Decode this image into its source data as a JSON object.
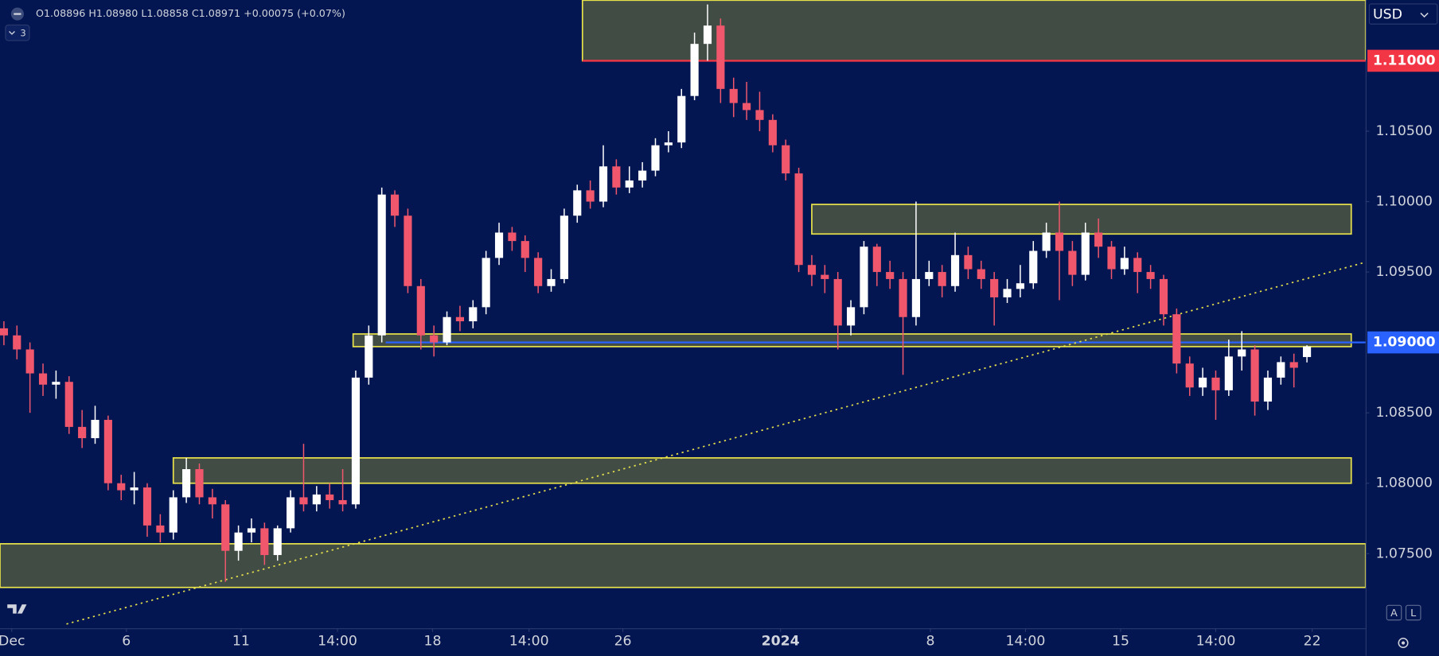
{
  "ui": {
    "indicator_count": "3",
    "currency": "USD",
    "button_auto": "A",
    "button_log": "L"
  },
  "chart_data": {
    "type": "candlestick",
    "legend_text": "O1.08896 H1.08980 L1.08858 C1.08971 +0.00075 (+0.07%)",
    "up_color": "#ffffff",
    "down_color": "#f0576c",
    "ylim": [
      1.0697,
      1.1143
    ],
    "xlim": [
      -0.3,
      104.5
    ],
    "yticks": [
      {
        "value": 1.075,
        "label": "1.07500"
      },
      {
        "value": 1.08,
        "label": "1.08000"
      },
      {
        "value": 1.085,
        "label": "1.08500"
      },
      {
        "value": 1.095,
        "label": "1.09500"
      },
      {
        "value": 1.1,
        "label": "1.10000"
      },
      {
        "value": 1.105,
        "label": "1.10500"
      }
    ],
    "xticks": [
      {
        "value": 0.6,
        "label": "Dec"
      },
      {
        "value": 9.4,
        "label": "6"
      },
      {
        "value": 18.2,
        "label": "11"
      },
      {
        "value": 25.6,
        "label": "14:00"
      },
      {
        "value": 32.9,
        "label": "18"
      },
      {
        "value": 40.3,
        "label": "14:00"
      },
      {
        "value": 47.5,
        "label": "26"
      },
      {
        "value": 59.6,
        "label": "2024"
      },
      {
        "value": 71.1,
        "label": "8"
      },
      {
        "value": 78.4,
        "label": "14:00"
      },
      {
        "value": 85.7,
        "label": "15"
      },
      {
        "value": 93.0,
        "label": "14:00"
      },
      {
        "value": 100.4,
        "label": "22"
      }
    ],
    "grid": false,
    "zones": [
      {
        "from": 1.11,
        "to": 1.1143,
        "start": 44.4,
        "end": 104.5,
        "color": "#444f45",
        "border": "#e6e04a"
      },
      {
        "from": 1.0977,
        "to": 1.0998,
        "start": 62.0,
        "end": 103.4,
        "color": "#444f45",
        "border": "#e6e04a"
      },
      {
        "from": 1.0897,
        "to": 1.0906,
        "start": 26.8,
        "end": 103.4,
        "color": "#444f45",
        "border": "#e6e04a"
      },
      {
        "from": 1.08,
        "to": 1.0818,
        "start": 13.0,
        "end": 103.4,
        "color": "#444f45",
        "border": "#e6e04a"
      },
      {
        "from": 1.0726,
        "to": 1.0757,
        "start": -0.3,
        "end": 104.5,
        "color": "#444f45",
        "border": "#e6e04a"
      }
    ],
    "trendline": {
      "points": [
        [
          4.8,
          1.07
        ],
        [
          104.5,
          1.0957
        ]
      ],
      "color": "#e6e04a"
    },
    "price_lines": [
      {
        "value": 1.11,
        "label": "1.11000",
        "start": 44.4,
        "color": "#f23645"
      },
      {
        "value": 1.09,
        "label": "1.09000",
        "start": 29.3,
        "color": "#2962ff"
      }
    ],
    "candles": [
      [
        1.091,
        1.0915,
        1.0898,
        1.0905
      ],
      [
        1.0905,
        1.0912,
        1.0888,
        1.0895
      ],
      [
        1.0895,
        1.09,
        1.085,
        1.0878
      ],
      [
        1.0878,
        1.0885,
        1.0862,
        1.087
      ],
      [
        1.087,
        1.088,
        1.086,
        1.0872
      ],
      [
        1.0872,
        1.0876,
        1.0835,
        1.084
      ],
      [
        1.084,
        1.0852,
        1.0825,
        1.0832
      ],
      [
        1.0832,
        1.0855,
        1.0828,
        1.0845
      ],
      [
        1.0845,
        1.0848,
        1.0795,
        1.08
      ],
      [
        1.08,
        1.0806,
        1.0788,
        1.0795
      ],
      [
        1.0795,
        1.0808,
        1.0785,
        1.0797
      ],
      [
        1.0797,
        1.08,
        1.0762,
        1.077
      ],
      [
        1.077,
        1.0778,
        1.0758,
        1.0765
      ],
      [
        1.0765,
        1.0795,
        1.076,
        1.079
      ],
      [
        1.079,
        1.0818,
        1.0786,
        1.081
      ],
      [
        1.081,
        1.0814,
        1.0785,
        1.079
      ],
      [
        1.079,
        1.0796,
        1.0775,
        1.0785
      ],
      [
        1.0785,
        1.0788,
        1.073,
        1.0752
      ],
      [
        1.0752,
        1.077,
        1.0745,
        1.0765
      ],
      [
        1.0765,
        1.0775,
        1.0758,
        1.0768
      ],
      [
        1.0768,
        1.0772,
        1.0742,
        1.0749
      ],
      [
        1.0749,
        1.077,
        1.0745,
        1.0768
      ],
      [
        1.0768,
        1.0795,
        1.0765,
        1.079
      ],
      [
        1.079,
        1.0828,
        1.078,
        1.0785
      ],
      [
        1.0785,
        1.0798,
        1.078,
        1.0792
      ],
      [
        1.0792,
        1.08,
        1.0782,
        1.0788
      ],
      [
        1.0788,
        1.081,
        1.078,
        1.0785
      ],
      [
        1.0785,
        1.088,
        1.0782,
        1.0875
      ],
      [
        1.0875,
        1.0912,
        1.087,
        1.0905
      ],
      [
        1.0905,
        1.101,
        1.09,
        1.1005
      ],
      [
        1.1005,
        1.1008,
        1.0982,
        1.099
      ],
      [
        1.099,
        1.0995,
        1.0935,
        1.094
      ],
      [
        1.094,
        1.0945,
        1.0895,
        1.0905
      ],
      [
        1.0905,
        1.0912,
        1.089,
        1.09
      ],
      [
        1.09,
        1.0922,
        1.0898,
        1.0918
      ],
      [
        1.0918,
        1.0926,
        1.0908,
        1.0915
      ],
      [
        1.0915,
        1.093,
        1.091,
        1.0925
      ],
      [
        1.0925,
        1.0965,
        1.092,
        1.096
      ],
      [
        1.096,
        1.0985,
        1.0955,
        1.0978
      ],
      [
        1.0978,
        1.0982,
        1.0965,
        1.0972
      ],
      [
        1.0972,
        1.0976,
        1.095,
        1.096
      ],
      [
        1.096,
        1.0964,
        1.0935,
        1.094
      ],
      [
        1.094,
        1.0952,
        1.0936,
        1.0945
      ],
      [
        1.0945,
        1.0995,
        1.0942,
        1.099
      ],
      [
        1.099,
        1.1012,
        1.0985,
        1.1008
      ],
      [
        1.1008,
        1.1015,
        1.0995,
        1.1
      ],
      [
        1.1,
        1.104,
        1.0996,
        1.1025
      ],
      [
        1.1025,
        1.103,
        1.1005,
        1.101
      ],
      [
        1.101,
        1.1025,
        1.1006,
        1.1015
      ],
      [
        1.1015,
        1.1028,
        1.101,
        1.1022
      ],
      [
        1.1022,
        1.1045,
        1.1018,
        1.104
      ],
      [
        1.104,
        1.105,
        1.1035,
        1.1042
      ],
      [
        1.1042,
        1.108,
        1.1038,
        1.1075
      ],
      [
        1.1075,
        1.112,
        1.1072,
        1.1112
      ],
      [
        1.1112,
        1.114,
        1.11,
        1.1125
      ],
      [
        1.1125,
        1.113,
        1.107,
        1.108
      ],
      [
        1.108,
        1.1088,
        1.106,
        1.107
      ],
      [
        1.107,
        1.1085,
        1.1058,
        1.1065
      ],
      [
        1.1065,
        1.1078,
        1.105,
        1.1058
      ],
      [
        1.1058,
        1.1062,
        1.1035,
        1.104
      ],
      [
        1.104,
        1.1044,
        1.1015,
        1.102
      ],
      [
        1.102,
        1.1024,
        1.095,
        1.0955
      ],
      [
        1.0955,
        1.0962,
        1.094,
        1.0948
      ],
      [
        1.0948,
        1.0955,
        1.0935,
        1.0945
      ],
      [
        1.0945,
        1.095,
        1.0895,
        1.0912
      ],
      [
        1.0912,
        1.093,
        1.0905,
        1.0925
      ],
      [
        1.0925,
        1.0972,
        1.092,
        1.0968
      ],
      [
        1.0968,
        1.097,
        1.094,
        1.095
      ],
      [
        1.095,
        1.0958,
        1.0938,
        1.0945
      ],
      [
        1.0945,
        1.095,
        1.0877,
        1.0918
      ],
      [
        1.0918,
        1.1,
        1.0912,
        1.0945
      ],
      [
        1.0945,
        1.0958,
        1.094,
        1.095
      ],
      [
        1.095,
        1.0955,
        1.0932,
        1.094
      ],
      [
        1.094,
        1.0978,
        1.0936,
        1.0962
      ],
      [
        1.0962,
        1.0968,
        1.0945,
        1.0952
      ],
      [
        1.0952,
        1.0958,
        1.0938,
        1.0945
      ],
      [
        1.0945,
        1.095,
        1.0912,
        1.0932
      ],
      [
        1.0932,
        1.0945,
        1.0928,
        1.0938
      ],
      [
        1.0938,
        1.0955,
        1.0932,
        1.0942
      ],
      [
        1.0942,
        1.0972,
        1.0938,
        1.0965
      ],
      [
        1.0965,
        1.0985,
        1.096,
        1.0978
      ],
      [
        1.0978,
        1.1,
        1.093,
        1.0965
      ],
      [
        1.0965,
        1.0972,
        1.094,
        1.0948
      ],
      [
        1.0948,
        1.0985,
        1.0944,
        1.0978
      ],
      [
        1.0978,
        1.0988,
        1.096,
        1.0968
      ],
      [
        1.0968,
        1.0972,
        1.0945,
        1.0952
      ],
      [
        1.0952,
        1.0968,
        1.0948,
        1.096
      ],
      [
        1.096,
        1.0964,
        1.0935,
        1.095
      ],
      [
        1.095,
        1.0955,
        1.0938,
        1.0945
      ],
      [
        1.0945,
        1.0948,
        1.0912,
        1.092
      ],
      [
        1.092,
        1.0924,
        1.0878,
        1.0885
      ],
      [
        1.0885,
        1.089,
        1.0862,
        1.0868
      ],
      [
        1.0868,
        1.0882,
        1.0862,
        1.0875
      ],
      [
        1.0875,
        1.088,
        1.0845,
        1.0866
      ],
      [
        1.0866,
        1.0902,
        1.0862,
        1.089
      ],
      [
        1.089,
        1.0908,
        1.088,
        1.0895
      ],
      [
        1.0895,
        1.0898,
        1.0848,
        1.0858
      ],
      [
        1.0858,
        1.088,
        1.0852,
        1.0875
      ],
      [
        1.0875,
        1.089,
        1.087,
        1.0886
      ],
      [
        1.0886,
        1.0892,
        1.0868,
        1.0882
      ],
      [
        1.08896,
        1.0898,
        1.08858,
        1.08971
      ]
    ]
  }
}
